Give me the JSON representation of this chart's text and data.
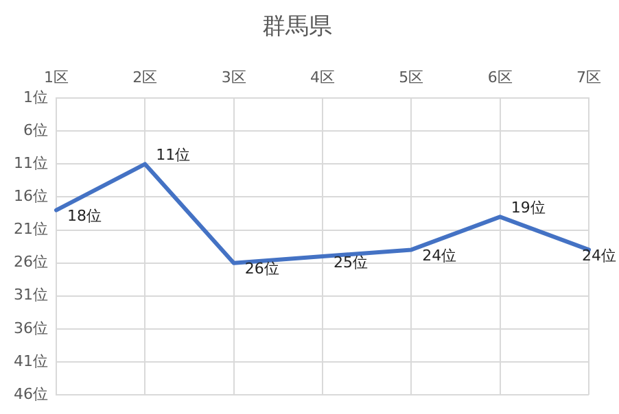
{
  "chart_data": {
    "type": "line",
    "title": "群馬県",
    "categories": [
      "1区",
      "2区",
      "3区",
      "4区",
      "5区",
      "6区",
      "7区"
    ],
    "series": [
      {
        "color": "#4472c4",
        "values": [
          18,
          11,
          26,
          25,
          24,
          19,
          24
        ],
        "value_labels": [
          "18位",
          "11位",
          "26位",
          "25位",
          "24位",
          "19位",
          "24位"
        ]
      }
    ],
    "ylim": [
      46,
      1
    ],
    "yticks": [
      {
        "value": 1,
        "label": "1位"
      },
      {
        "value": 6,
        "label": "6位"
      },
      {
        "value": 11,
        "label": "11位"
      },
      {
        "value": 16,
        "label": "16位"
      },
      {
        "value": 21,
        "label": "21位"
      },
      {
        "value": 26,
        "label": "26位"
      },
      {
        "value": 31,
        "label": "31位"
      },
      {
        "value": 36,
        "label": "36位"
      },
      {
        "value": 41,
        "label": "41位"
      },
      {
        "value": 46,
        "label": "46位"
      }
    ],
    "grid": true,
    "marker": "none",
    "line_style": "solid"
  }
}
